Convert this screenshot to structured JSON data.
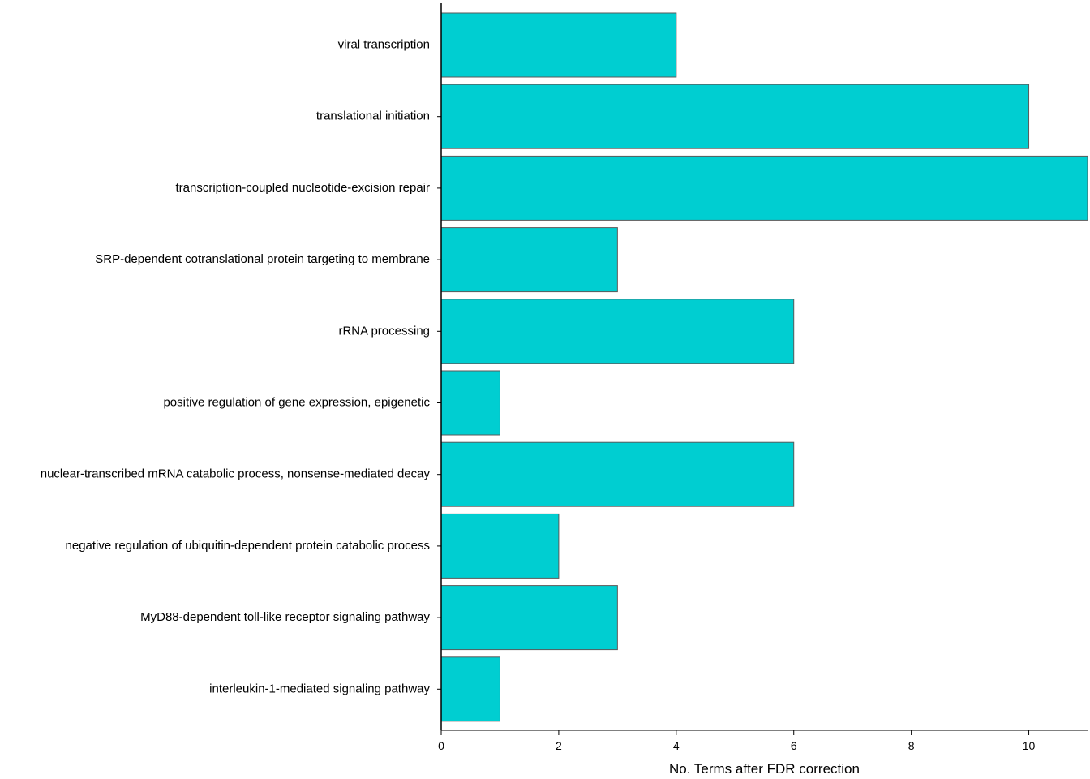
{
  "chart_data": {
    "type": "bar",
    "orientation": "horizontal",
    "categories": [
      "viral transcription",
      "translational initiation",
      "transcription-coupled nucleotide-excision repair",
      "SRP-dependent cotranslational protein targeting to membrane",
      "rRNA processing",
      "positive regulation of gene expression, epigenetic",
      "nuclear-transcribed mRNA catabolic process, nonsense-mediated decay",
      "negative regulation of ubiquitin-dependent protein catabolic process",
      "MyD88-dependent toll-like receptor signaling pathway",
      "interleukin-1-mediated signaling pathway"
    ],
    "values": [
      4,
      10,
      11,
      3,
      6,
      1,
      6,
      2,
      3,
      1
    ],
    "xlabel": "No. Terms after FDR correction",
    "ylabel": "",
    "title": "",
    "xlim": [
      0,
      11
    ],
    "xticks": [
      0,
      2,
      4,
      6,
      8,
      10
    ],
    "bar_color": "#00CED1",
    "bar_edge_color": "#5a5a5a",
    "grid": false,
    "legend": "none"
  }
}
